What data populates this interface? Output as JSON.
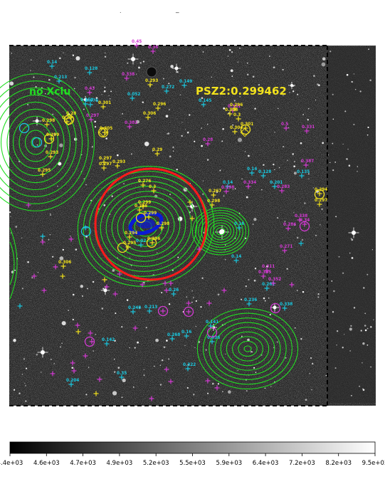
{
  "image": {
    "labels": {
      "cluster_name": "PSZ2:0.299462",
      "no_xclu": "no Xclu",
      "top_mark": "_",
      "top_dot": "."
    },
    "colors": {
      "background": "#222222",
      "contour": "#22dd22",
      "circle_red": "#ff1a1a",
      "blue_blob": "#0a1ad6",
      "cyan_marker": "#19c8e0",
      "magenta_marker": "#d43ad4",
      "yellow_marker": "#f2e21c",
      "frame_dash": "#000000"
    },
    "cyan_numbers": [
      "0.14",
      "0.128",
      "0.213",
      "0.052",
      "0.152",
      "0.076",
      "0.272",
      "0.149",
      "0.145",
      "0.14",
      "0.14",
      "0.128",
      "0.201",
      "0.135",
      "0.16",
      "0.14",
      "0.02",
      "0.26",
      "0.236",
      "0.338",
      "0.248",
      "0.213",
      "0.268",
      "0.16",
      "0.141",
      "0.036",
      "0.142",
      "0.35",
      "0.204",
      "0.322",
      "0.262"
    ],
    "magenta_numbers": [
      "0.45",
      "0.36",
      "0.338",
      "0.43",
      "0.382",
      "0.297",
      "0.331",
      "0.5",
      "0.331",
      "0.387",
      "0.28",
      "0.298",
      "0.334",
      "0.283",
      "0.338",
      "0.286",
      "0.34",
      "0.311",
      "0.352",
      "0.271",
      "0.305"
    ],
    "yellow_numbers": [
      "0.298",
      "0.299",
      "0.28",
      "0.29",
      "0.301",
      "0.305",
      "0.293",
      "0.306",
      "0.296",
      "0.29",
      "0.297",
      "0.297",
      "0.293",
      "0.276",
      "0.3",
      "0.299",
      "0.296",
      "0.299",
      "0.294",
      "0.295",
      "0.296",
      "0.298",
      "0.267",
      "0.298",
      "0.296",
      "0.306",
      "0.3",
      "0.301",
      "0.304",
      "0.294",
      "0.297",
      "0.293",
      "0.295",
      "0.306"
    ]
  },
  "colorbar": {
    "ticks": [
      "4.4e+03",
      "4.6e+03",
      "4.7e+03",
      "4.9e+03",
      "5.2e+03",
      "5.5e+03",
      "5.9e+03",
      "6.4e+03",
      "7.2e+03",
      "8.2e+03",
      "9.5e+03"
    ]
  }
}
